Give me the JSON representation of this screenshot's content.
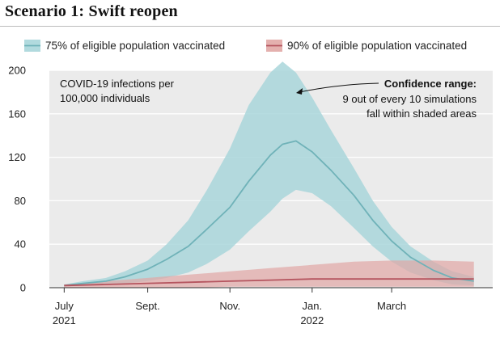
{
  "title": "Scenario 1: Swift reopen",
  "chart_data": {
    "type": "area",
    "title": "Scenario 1: Swift reopen",
    "ylim": [
      0,
      200
    ],
    "yticks": [
      0,
      40,
      80,
      120,
      160,
      200
    ],
    "xlim": [
      "2021-06-20",
      "2022-05-15"
    ],
    "xticks": [
      {
        "date": "2021-07-01",
        "line1": "July",
        "line2": "2021"
      },
      {
        "date": "2021-09-01",
        "line1": "Sept.",
        "line2": ""
      },
      {
        "date": "2021-11-01",
        "line1": "Nov.",
        "line2": ""
      },
      {
        "date": "2022-01-01",
        "line1": "Jan.",
        "line2": "2022"
      },
      {
        "date": "2022-03-01",
        "line1": "March",
        "line2": ""
      }
    ],
    "grid": true,
    "legend_position": "top",
    "annotations": {
      "left": [
        "COVID-19 infections per",
        "100,000 individuals"
      ],
      "right_title": "Confidence range:",
      "right_lines": [
        "9 out of every 10 simulations",
        "fall within shaded areas"
      ]
    },
    "series": [
      {
        "name": "75% of eligible population vaccinated",
        "color": "#6fb2b8",
        "band_color": "#a9d6da",
        "x": [
          "2021-07-01",
          "2021-07-15",
          "2021-08-01",
          "2021-08-15",
          "2021-09-01",
          "2021-09-15",
          "2021-10-01",
          "2021-10-15",
          "2021-11-01",
          "2021-11-15",
          "2021-12-01",
          "2021-12-10",
          "2021-12-20",
          "2022-01-01",
          "2022-01-15",
          "2022-02-01",
          "2022-02-15",
          "2022-03-01",
          "2022-03-15",
          "2022-04-01",
          "2022-04-15",
          "2022-05-01"
        ],
        "median": [
          2,
          4,
          6,
          10,
          17,
          26,
          38,
          54,
          74,
          98,
          122,
          132,
          135,
          125,
          108,
          85,
          62,
          43,
          28,
          16,
          9,
          6
        ],
        "lower": [
          1,
          2,
          3,
          4,
          6,
          9,
          14,
          22,
          35,
          52,
          70,
          82,
          90,
          87,
          75,
          55,
          38,
          24,
          14,
          7,
          3,
          2
        ],
        "upper": [
          3,
          6,
          9,
          15,
          25,
          40,
          62,
          90,
          128,
          168,
          198,
          208,
          198,
          175,
          145,
          110,
          80,
          56,
          38,
          24,
          15,
          10
        ]
      },
      {
        "name": "90% of eligible population vaccinated",
        "color": "#b5555f",
        "band_color": "#e1a7a5",
        "x": [
          "2021-07-01",
          "2021-08-01",
          "2021-09-01",
          "2021-10-01",
          "2021-11-01",
          "2021-12-01",
          "2022-01-01",
          "2022-02-01",
          "2022-03-01",
          "2022-04-01",
          "2022-05-01"
        ],
        "median": [
          2,
          3,
          4,
          5,
          6,
          7,
          8,
          8,
          8,
          8,
          8
        ],
        "lower": [
          0,
          0,
          0,
          0,
          1,
          1,
          1,
          1,
          1,
          1,
          1
        ],
        "upper": [
          3,
          6,
          9,
          12,
          15,
          18,
          21,
          24,
          25,
          25,
          24
        ]
      }
    ]
  },
  "colors": {
    "plot_background": "#ebebeb",
    "gridline": "#ffffff"
  }
}
